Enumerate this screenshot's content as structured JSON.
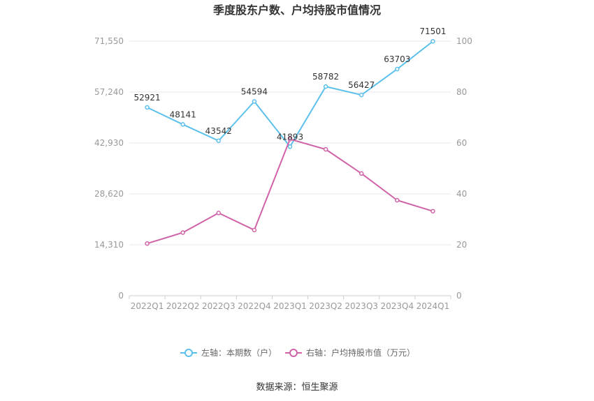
{
  "chart_data": {
    "type": "line",
    "title": "季度股东户数、户均持股市值情况",
    "categories": [
      "2022Q1",
      "2022Q2",
      "2022Q3",
      "2022Q4",
      "2023Q1",
      "2023Q2",
      "2023Q3",
      "2023Q4",
      "2024Q1"
    ],
    "y_left": {
      "range": [
        0,
        71550
      ],
      "ticks": [
        "0",
        "14,310",
        "28,620",
        "42,930",
        "57,240",
        "71,550"
      ],
      "tick_values": [
        0,
        14310,
        28620,
        42930,
        57240,
        71550
      ]
    },
    "y_right": {
      "range": [
        0,
        100
      ],
      "ticks": [
        "0",
        "20",
        "40",
        "60",
        "80",
        "100"
      ],
      "tick_values": [
        0,
        20,
        40,
        60,
        80,
        100
      ]
    },
    "grid": true,
    "legend_position": "bottom",
    "series": [
      {
        "name": "左轴：本期数（户）",
        "axis": "left",
        "color": "#5bc0eb",
        "values": [
          52921,
          48141,
          43542,
          54594,
          41893,
          58782,
          56427,
          63703,
          71501
        ],
        "labels": [
          "52921",
          "48141",
          "43542",
          "54594",
          "41893",
          "58782",
          "56427",
          "63703",
          "71501"
        ]
      },
      {
        "name": "右轴：户均持股市值（万元）",
        "axis": "right",
        "color": "#d063a8",
        "values": [
          20.5,
          24.8,
          32.5,
          25.8,
          61.5,
          57.5,
          48.0,
          37.5,
          33.2
        ]
      }
    ]
  },
  "source": "数据来源：恒生聚源"
}
